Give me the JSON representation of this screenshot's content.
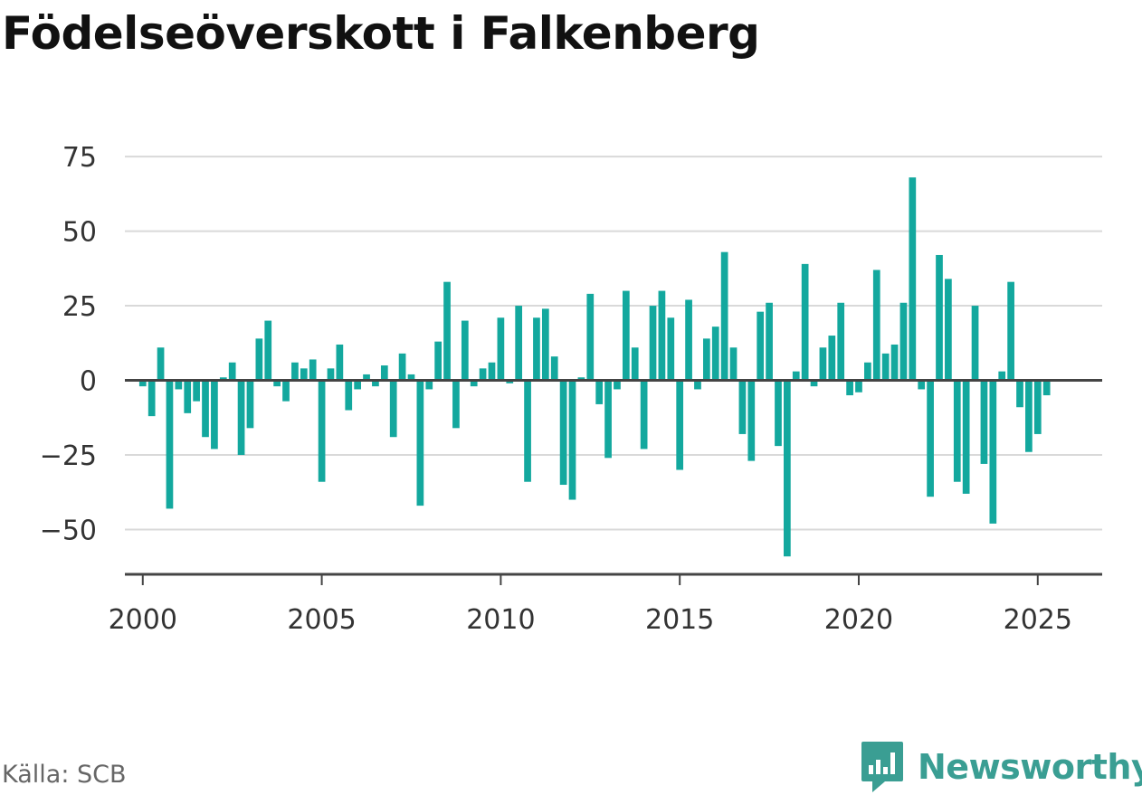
{
  "title": "Födelseöverskott i Falkenberg",
  "source": "Källa: SCB",
  "brand": {
    "name": "Newsworthy",
    "icon": "newsworthy-logo-icon",
    "color": "#3a9e93"
  },
  "chart_data": {
    "type": "bar",
    "title": "Födelseöverskott i Falkenberg",
    "xlabel": "",
    "ylabel": "",
    "bar_color": "#13a89e",
    "grid": true,
    "xlim": [
      1999.5,
      2026.8
    ],
    "ylim": [
      -65,
      82
    ],
    "yticks": [
      -50,
      -25,
      0,
      25,
      50,
      75
    ],
    "ytick_labels": [
      "−50",
      "−25",
      "0",
      "25",
      "50",
      "75"
    ],
    "xticks": [
      2000,
      2005,
      2010,
      2015,
      2020,
      2025
    ],
    "xtick_labels": [
      "2000",
      "2005",
      "2010",
      "2015",
      "2020",
      "2025"
    ],
    "period_start": 2000,
    "periods_per_year": 4,
    "values": [
      -2,
      -12,
      11,
      -43,
      -3,
      -11,
      -7,
      -19,
      -23,
      1,
      6,
      -25,
      -16,
      14,
      20,
      -2,
      -7,
      6,
      4,
      7,
      -34,
      4,
      12,
      -10,
      -3,
      2,
      -2,
      5,
      -19,
      9,
      2,
      -42,
      -3,
      13,
      33,
      -16,
      20,
      -2,
      4,
      6,
      21,
      -1,
      25,
      -34,
      21,
      24,
      8,
      -35,
      -40,
      1,
      29,
      -8,
      -26,
      -3,
      30,
      11,
      -23,
      25,
      30,
      21,
      -30,
      27,
      -3,
      14,
      18,
      43,
      11,
      -18,
      -27,
      23,
      26,
      -22,
      -59,
      3,
      39,
      -2,
      11,
      15,
      26,
      -5,
      -4,
      6,
      37,
      9,
      12,
      26,
      68,
      -3,
      -39,
      42,
      34,
      -34,
      -38,
      25,
      -28,
      -48,
      3,
      33,
      -9,
      -24,
      -18,
      -5
    ]
  }
}
